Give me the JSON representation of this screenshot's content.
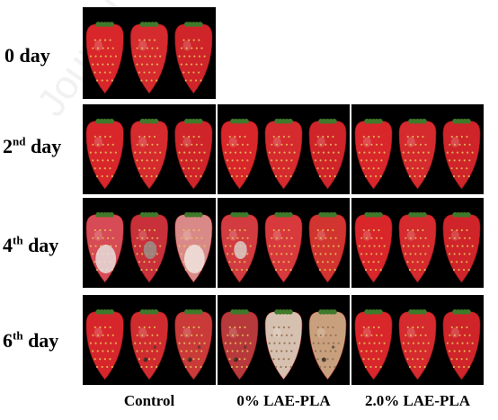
{
  "rows": [
    {
      "num": "0",
      "sup": "",
      "word": "day"
    },
    {
      "num": "2",
      "sup": "nd",
      "word": "day"
    },
    {
      "num": "4",
      "sup": "th",
      "word": "day"
    },
    {
      "num": "6",
      "sup": "th",
      "word": "day"
    }
  ],
  "columns": [
    "Control",
    "0% LAE-PLA",
    "2.0% LAE-PLA"
  ],
  "watermark_text": "Journal"
}
